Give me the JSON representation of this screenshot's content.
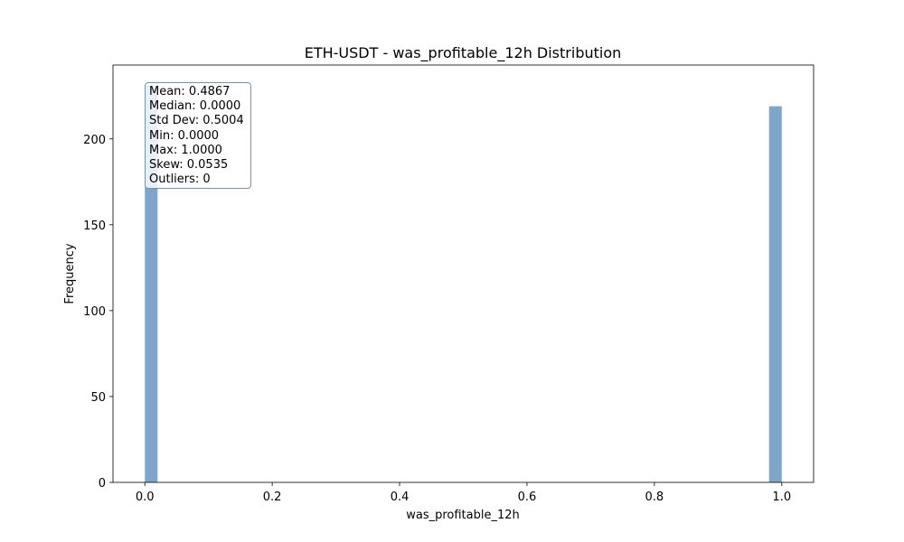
{
  "chart_data": {
    "type": "bar",
    "title": "ETH-USDT - was_profitable_12h Distribution",
    "xlabel": "was_profitable_12h",
    "ylabel": "Frequency",
    "xlim": [
      -0.05,
      1.05
    ],
    "ylim": [
      0,
      243
    ],
    "x_ticks": [
      "0.0",
      "0.2",
      "0.4",
      "0.6",
      "0.8",
      "1.0"
    ],
    "y_ticks": [
      "0",
      "50",
      "100",
      "150",
      "200"
    ],
    "bins": 50,
    "bar_color": "#7ea6cb",
    "x": [
      0.0,
      1.0
    ],
    "values": [
      231,
      219
    ],
    "grid": false,
    "stats_box": [
      "Mean: 0.4867",
      "Median: 0.0000",
      "Std Dev: 0.5004",
      "Min: 0.0000",
      "Max: 1.0000",
      "Skew: 0.0535",
      "Outliers: 0"
    ]
  }
}
